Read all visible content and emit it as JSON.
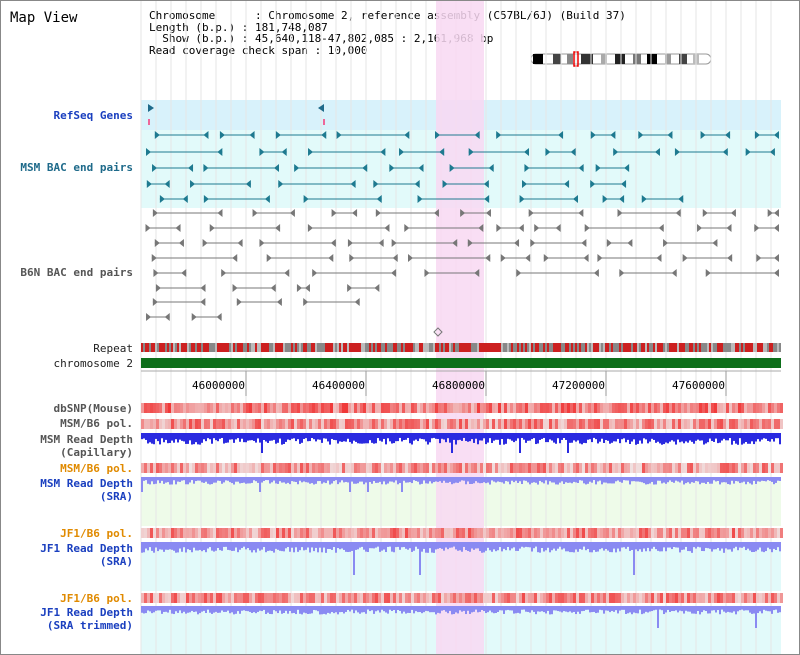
{
  "header": {
    "title": "Map View",
    "info_lines": [
      "Chromosome      : Chromosome 2, reference assembly (C57BL/6J) (Build 37)",
      "Length (b.p.) : 181,748,087",
      "  Show (b.p.) : 45,640,118-47,802,085 : 2,161,968 bp",
      "Read coverage check span : 10,000"
    ]
  },
  "tracks": {
    "refseq": "RefSeq Genes",
    "msm_bac": "MSM BAC end pairs",
    "b6n_bac": "B6N BAC end pairs",
    "repeat": "Repeat",
    "chromosome": "chromosome 2",
    "dbsnp": "dbSNP(Mouse)",
    "msm_b6_pol_1": "MSM/B6 pol.",
    "msm_depth_cap_1": "MSM Read Depth",
    "msm_depth_cap_2": "(Capillary)",
    "msm_b6_pol_2": "MSM/B6 pol.",
    "msm_depth_sra_1": "MSM Read Depth",
    "msm_depth_sra_2": "(SRA)",
    "jf1_b6_pol_1": "JF1/B6 pol.",
    "jf1_depth_sra_1": "JF1 Read Depth",
    "jf1_depth_sra_2": "(SRA)",
    "jf1_b6_pol_2": "JF1/B6 pol.",
    "jf1_depth_trim_1": "JF1 Read Depth",
    "jf1_depth_trim_2": "(SRA trimmed)"
  },
  "axis": {
    "ticks": [
      "46000000",
      "46400000",
      "46800000",
      "47200000",
      "47600000"
    ]
  },
  "colors": {
    "highlight": "#f8d8f2",
    "refseq_band": "#d8f2fb",
    "msm_band": "#e2fafa",
    "repeat_red": "#cc2020",
    "chromosome": "#0d6e1a",
    "depth_blue": "#2a2ae0",
    "depth_light": "#8a8af2",
    "sra_band": "#eefbe9"
  }
}
